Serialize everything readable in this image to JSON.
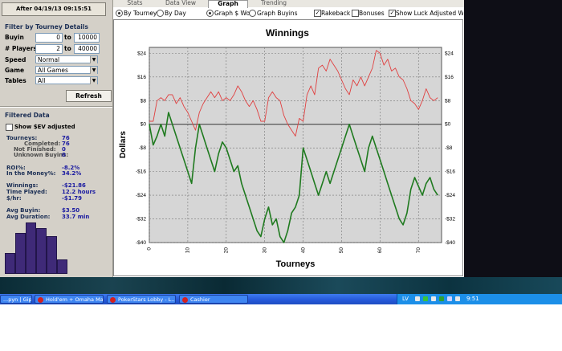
{
  "filter_button": "After 04/19/13 09:15:51",
  "filter_section": "Filter by Tourney Details",
  "buyin": {
    "label": "Buyin",
    "from": "0",
    "to_label": "to",
    "to": "10000"
  },
  "players": {
    "label": "# Players",
    "from": "2",
    "to_label": "to",
    "to": "40000"
  },
  "speed": {
    "label": "Speed",
    "value": "Normal"
  },
  "game": {
    "label": "Game",
    "value": "All Games"
  },
  "tables": {
    "label": "Tables",
    "value": "All"
  },
  "refresh_label": "Refresh",
  "filtered_section": "Filtered Data",
  "show_sev_label": "Show $EV adjusted",
  "stats": {
    "tourneys": {
      "label": "Tourneys:",
      "value": "76"
    },
    "completed": {
      "label": "Completed:",
      "value": "76"
    },
    "not_finished": {
      "label": "Not Finished:",
      "value": "0"
    },
    "unknown_buyins": {
      "label": "Unknown Buyins:",
      "value": "0"
    },
    "roi": {
      "label": "ROI%:",
      "value": "-8.2%"
    },
    "itm": {
      "label": "In the Money%:",
      "value": "34.2%"
    },
    "winnings": {
      "label": "Winnings:",
      "value": "-$21.86"
    },
    "time_played": {
      "label": "Time Played:",
      "value": "12.2 hours"
    },
    "per_hour": {
      "label": "$/hr:",
      "value": "-$1.79"
    },
    "avg_buyin": {
      "label": "Avg Buyin:",
      "value": "$3.50"
    },
    "avg_duration": {
      "label": "Avg Duration:",
      "value": "33.7 min"
    }
  },
  "histogram_relative_heights": [
    0.4,
    0.78,
    0.98,
    0.88,
    0.72,
    0.28
  ],
  "tabs": [
    "Stats",
    "Data View",
    "Graph",
    "Trending"
  ],
  "active_tab": "Graph",
  "options": {
    "by_tourney": "By Tourney",
    "by_day": "By Day",
    "graph_won": "Graph $ Won",
    "graph_buyins": "Graph Buyins",
    "rakeback": "Rakeback",
    "bonuses": "Bonuses",
    "show_luck": "Show Luck Adjusted Winnings"
  },
  "taskbar": {
    "tasks": [
      "...pyn | Gipsy...",
      "Hold'em + Omaha Ma...",
      "PokerStars Lobby - L...",
      "Cashier"
    ],
    "lang": "LV",
    "time": "9:51"
  },
  "colors": {
    "red_line": "#e04040",
    "green_line": "#1f7a1f",
    "accent": "#1c2f55",
    "stat_value": "#1a1aa0"
  },
  "chart_data": {
    "type": "line",
    "title": "Winnings",
    "xlabel": "Tourneys",
    "ylabel": "Dollars",
    "xlim": [
      0,
      76
    ],
    "ylim": [
      -40,
      26
    ],
    "xticks": [
      0,
      10,
      20,
      30,
      40,
      50,
      60,
      70
    ],
    "yticks": [
      -40,
      -32,
      -24,
      -16,
      -8,
      0,
      8,
      16,
      24
    ],
    "ytick_labels": [
      "-$40",
      "-$32",
      "-$24",
      "-$16",
      "-$8",
      "$0",
      "$8",
      "$16",
      "$24"
    ],
    "grid": true,
    "series": [
      {
        "color": "#e04040",
        "x": [
          0,
          1,
          2,
          3,
          4,
          5,
          6,
          7,
          8,
          9,
          10,
          11,
          12,
          13,
          14,
          15,
          16,
          17,
          18,
          19,
          20,
          21,
          22,
          23,
          24,
          25,
          26,
          27,
          28,
          29,
          30,
          31,
          32,
          33,
          34,
          35,
          36,
          37,
          38,
          39,
          40,
          41,
          42,
          43,
          44,
          45,
          46,
          47,
          48,
          49,
          50,
          51,
          52,
          53,
          54,
          55,
          56,
          57,
          58,
          59,
          60,
          61,
          62,
          63,
          64,
          65,
          66,
          67,
          68,
          69,
          70,
          71,
          72,
          73,
          74,
          75
        ],
        "y": [
          1,
          1,
          8,
          9,
          8,
          10,
          10,
          7,
          9,
          6,
          4,
          1,
          -2,
          4,
          7,
          9,
          11,
          9,
          11,
          8,
          9,
          8,
          10,
          13,
          11,
          8,
          6,
          8,
          5,
          1,
          1,
          9,
          11,
          9,
          8,
          3,
          0,
          -2,
          -4,
          2,
          1,
          10,
          13,
          10,
          19,
          20,
          18,
          22,
          20,
          18,
          15,
          12,
          10,
          15,
          13,
          16,
          13,
          16,
          19,
          25,
          24,
          20,
          22,
          18,
          19,
          16,
          15,
          12,
          8,
          7,
          5,
          8,
          12,
          9,
          8,
          9
        ]
      },
      {
        "color": "#1f7a1f",
        "x": [
          0,
          1,
          2,
          3,
          4,
          5,
          6,
          7,
          8,
          9,
          10,
          11,
          12,
          13,
          14,
          15,
          16,
          17,
          18,
          19,
          20,
          21,
          22,
          23,
          24,
          25,
          26,
          27,
          28,
          29,
          30,
          31,
          32,
          33,
          34,
          35,
          36,
          37,
          38,
          39,
          40,
          41,
          42,
          43,
          44,
          45,
          46,
          47,
          48,
          49,
          50,
          51,
          52,
          53,
          54,
          55,
          56,
          57,
          58,
          59,
          60,
          61,
          62,
          63,
          64,
          65,
          66,
          67,
          68,
          69,
          70,
          71,
          72,
          73,
          74,
          75
        ],
        "y": [
          0,
          -7,
          -4,
          0,
          -4,
          4,
          0,
          -4,
          -8,
          -12,
          -16,
          -20,
          -8,
          0,
          -4,
          -8,
          -12,
          -16,
          -10,
          -6,
          -8,
          -12,
          -16,
          -14,
          -20,
          -24,
          -28,
          -32,
          -36,
          -38,
          -32,
          -28,
          -34,
          -32,
          -38,
          -40,
          -36,
          -30,
          -28,
          -24,
          -8,
          -12,
          -16,
          -20,
          -24,
          -20,
          -16,
          -20,
          -16,
          -12,
          -8,
          -4,
          0,
          -4,
          -8,
          -12,
          -16,
          -8,
          -4,
          -8,
          -12,
          -16,
          -20,
          -24,
          -28,
          -32,
          -34,
          -30,
          -22,
          -18,
          -21,
          -24,
          -20,
          -18,
          -22,
          -24
        ]
      }
    ]
  }
}
